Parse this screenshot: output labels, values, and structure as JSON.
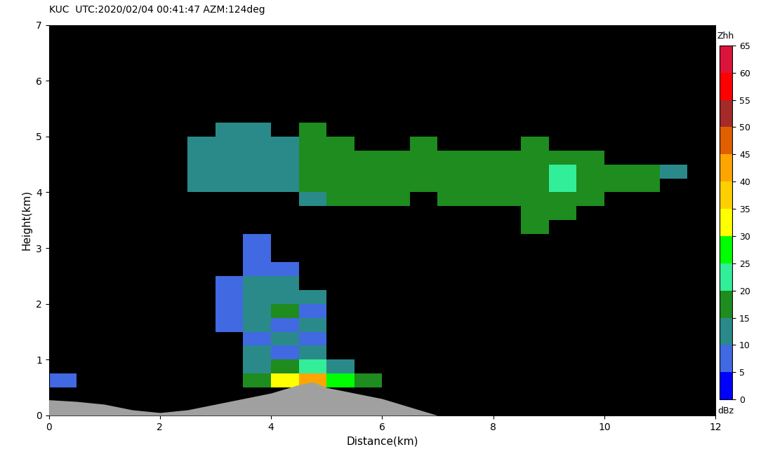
{
  "chart_data": {
    "type": "heatmap",
    "title": "KUC  UTC:2020/02/04 00:41:47 AZM:124deg",
    "x_label": "Distance(km)",
    "y_label": "Height(km)",
    "xlim": [
      0,
      12
    ],
    "xticks": [
      0,
      2,
      4,
      6,
      8,
      10,
      12
    ],
    "ylim": [
      0,
      7
    ],
    "yticks": [
      0,
      1,
      2,
      3,
      4,
      5,
      6,
      7
    ],
    "cell_x_edges": [
      0,
      0.5,
      1,
      1.5,
      2,
      2.5,
      3,
      3.5,
      4,
      4.5,
      5,
      5.5,
      6,
      6.5,
      7,
      7.5,
      8,
      8.5,
      9,
      9.5,
      10,
      10.5,
      11,
      11.5,
      12
    ],
    "cell_y_edges": [
      0.5,
      0.75,
      1,
      1.25,
      1.5,
      1.75,
      2,
      2.25,
      2.5,
      2.75,
      3,
      3.25,
      3.5,
      3.75,
      4,
      4.25,
      4.5,
      4.75,
      5,
      5.25
    ],
    "cells": [
      [
        8,
        null,
        null,
        null,
        null,
        null,
        null,
        15,
        30,
        42,
        25,
        18,
        null,
        null,
        null,
        null,
        null,
        null,
        null,
        null,
        null,
        null,
        null,
        null
      ],
      [
        null,
        null,
        null,
        null,
        null,
        null,
        null,
        12,
        15,
        20,
        12,
        null,
        null,
        null,
        null,
        null,
        null,
        null,
        null,
        null,
        null,
        null,
        null,
        null
      ],
      [
        null,
        null,
        null,
        null,
        null,
        null,
        null,
        10,
        8,
        10,
        null,
        null,
        null,
        null,
        null,
        null,
        null,
        null,
        null,
        null,
        null,
        null,
        null,
        null
      ],
      [
        null,
        null,
        null,
        null,
        null,
        null,
        null,
        8,
        10,
        8,
        null,
        null,
        null,
        null,
        null,
        null,
        null,
        null,
        null,
        null,
        null,
        null,
        null,
        null
      ],
      [
        null,
        null,
        null,
        null,
        null,
        null,
        8,
        10,
        8,
        10,
        null,
        null,
        null,
        null,
        null,
        null,
        null,
        null,
        null,
        null,
        null,
        null,
        null,
        null
      ],
      [
        null,
        null,
        null,
        null,
        null,
        null,
        8,
        12,
        15,
        8,
        null,
        null,
        null,
        null,
        null,
        null,
        null,
        null,
        null,
        null,
        null,
        null,
        null,
        null
      ],
      [
        null,
        null,
        null,
        null,
        null,
        null,
        8,
        10,
        12,
        10,
        null,
        null,
        null,
        null,
        null,
        null,
        null,
        null,
        null,
        null,
        null,
        null,
        null,
        null
      ],
      [
        null,
        null,
        null,
        null,
        null,
        null,
        8,
        10,
        10,
        null,
        null,
        null,
        null,
        null,
        null,
        null,
        null,
        null,
        null,
        null,
        null,
        null,
        null,
        null
      ],
      [
        null,
        null,
        null,
        null,
        null,
        null,
        null,
        8,
        8,
        null,
        null,
        null,
        null,
        null,
        null,
        null,
        null,
        null,
        null,
        null,
        null,
        null,
        null,
        null
      ],
      [
        null,
        null,
        null,
        null,
        null,
        null,
        null,
        8,
        null,
        null,
        null,
        null,
        null,
        null,
        null,
        null,
        null,
        null,
        null,
        null,
        null,
        null,
        null,
        null
      ],
      [
        null,
        null,
        null,
        null,
        null,
        null,
        null,
        8,
        null,
        null,
        null,
        null,
        null,
        null,
        null,
        null,
        null,
        null,
        null,
        null,
        null,
        null,
        null,
        null
      ],
      [
        null,
        null,
        null,
        null,
        null,
        null,
        null,
        null,
        null,
        null,
        null,
        null,
        null,
        null,
        null,
        null,
        null,
        16,
        null,
        null,
        null,
        null,
        null,
        null
      ],
      [
        null,
        null,
        null,
        null,
        null,
        null,
        null,
        null,
        null,
        null,
        null,
        null,
        null,
        null,
        null,
        null,
        null,
        16,
        16,
        null,
        null,
        null,
        null,
        null
      ],
      [
        null,
        null,
        null,
        null,
        null,
        null,
        null,
        null,
        null,
        10,
        16,
        16,
        16,
        null,
        16,
        16,
        16,
        17,
        17,
        16,
        null,
        null,
        null,
        null
      ],
      [
        null,
        null,
        null,
        null,
        null,
        10,
        10,
        10,
        12,
        16,
        17,
        17,
        17,
        16,
        17,
        16,
        17,
        18,
        20,
        17,
        17,
        16,
        null,
        null
      ],
      [
        null,
        null,
        null,
        null,
        null,
        10,
        10,
        11,
        12,
        15,
        17,
        17,
        16,
        16,
        17,
        17,
        17,
        18,
        20,
        17,
        17,
        16,
        12,
        null
      ],
      [
        null,
        null,
        null,
        null,
        null,
        10,
        11,
        11,
        11,
        15,
        16,
        16,
        16,
        16,
        16,
        16,
        17,
        18,
        17,
        16,
        null,
        null,
        null,
        null
      ],
      [
        null,
        null,
        null,
        null,
        null,
        10,
        10,
        10,
        10,
        16,
        16,
        null,
        null,
        16,
        null,
        null,
        null,
        16,
        null,
        null,
        null,
        null,
        null,
        null
      ],
      [
        null,
        null,
        null,
        null,
        null,
        null,
        10,
        10,
        null,
        16,
        null,
        null,
        null,
        null,
        null,
        null,
        null,
        null,
        null,
        null,
        null,
        null,
        null,
        null
      ]
    ],
    "terrain": {
      "x": [
        0,
        0.5,
        1,
        1.5,
        2,
        2.5,
        3,
        3.5,
        4,
        4.5,
        4.75,
        5,
        5.5,
        6,
        6.5,
        7,
        12
      ],
      "height": [
        0.28,
        0.25,
        0.2,
        0.1,
        0.05,
        0.1,
        0.2,
        0.3,
        0.4,
        0.55,
        0.6,
        0.5,
        0.4,
        0.3,
        0.15,
        0.0,
        0.0
      ]
    },
    "colorbar": {
      "title": "Zhh",
      "unit": "dBz",
      "lim": [
        0,
        65
      ],
      "ticks": [
        0,
        5,
        10,
        15,
        20,
        25,
        30,
        35,
        40,
        45,
        50,
        55,
        60,
        65
      ],
      "colors": [
        "#0000ff",
        "#4169e1",
        "#2a8a8a",
        "#1e8c1e",
        "#33ee99",
        "#00ff00",
        "#ffff00",
        "#ffd000",
        "#ffa500",
        "#e06000",
        "#a52a2a",
        "#ff0000",
        "#dc143c"
      ]
    }
  }
}
